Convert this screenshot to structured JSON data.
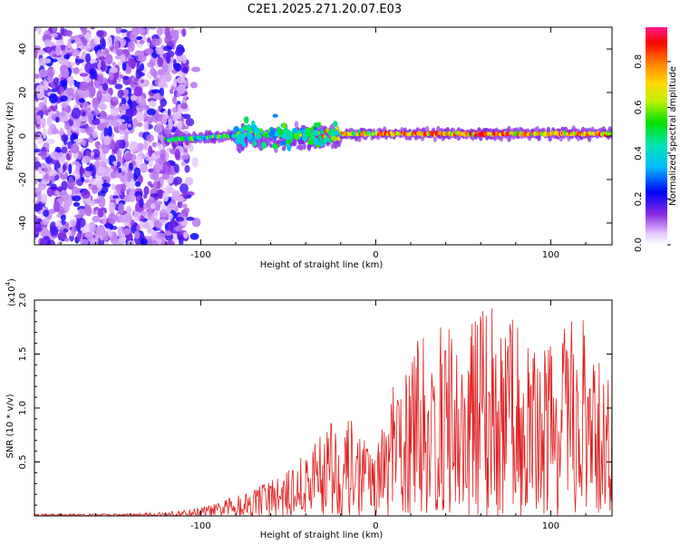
{
  "figure_title": "C2E1.2025.271.20.07.E03",
  "chart_data": [
    {
      "type": "heatmap",
      "title": "C2E1.2025.271.20.07.E03",
      "xlabel": "Height of straight line (km)",
      "ylabel": "Frequency (Hz)",
      "xlim": [
        -195,
        135
      ],
      "ylim": [
        -50,
        50
      ],
      "xticks": [
        -100,
        0,
        100
      ],
      "yticks": [
        -40,
        -20,
        0,
        20,
        40
      ],
      "xtick_labels": [
        "-100",
        "0",
        "100"
      ],
      "ytick_labels": [
        "-40",
        "-20",
        "0",
        "20",
        "40"
      ],
      "colorbar": {
        "label": "Normalized spectral amplitude",
        "range": [
          0,
          0.95
        ],
        "ticks": [
          "0.0",
          "0.2",
          "0.4",
          "0.6",
          "0.8"
        ],
        "tick_values": [
          0.0,
          0.2,
          0.4,
          0.6,
          0.8
        ]
      },
      "description_points": {
        "noise_region_x": [
          -195,
          -108
        ],
        "signal_line_frequency_hz": 1,
        "signal_start_x": -120,
        "disturbed_region_x": [
          -80,
          -20
        ]
      }
    },
    {
      "type": "line",
      "xlabel": "Height of straight line (km)",
      "ylabel": "SNR (10 * v/v)",
      "multiplier_label": "(x10",
      "multiplier_exp": "4",
      "multiplier_close": ")",
      "xlim": [
        -195,
        135
      ],
      "ylim": [
        0,
        2.0
      ],
      "xticks": [
        -100,
        0,
        100
      ],
      "xtick_labels": [
        "-100",
        "0",
        "100"
      ],
      "yticks": [
        0.5,
        1.0,
        1.5,
        2.0
      ],
      "ytick_labels": [
        "0.5",
        "1.0",
        "1.5",
        "2.0"
      ],
      "color": "#e02020",
      "envelope": {
        "x": [
          -195,
          -140,
          -110,
          -90,
          -80,
          -70,
          -60,
          -50,
          -40,
          -35,
          -30,
          -25,
          -20,
          -15,
          -10,
          -5,
          0,
          5,
          10,
          20,
          27,
          30,
          40,
          50,
          55,
          60,
          65,
          70,
          80,
          90,
          100,
          110,
          120,
          125,
          130,
          135
        ],
        "y": [
          0.02,
          0.02,
          0.05,
          0.12,
          0.2,
          0.28,
          0.35,
          0.42,
          0.62,
          0.7,
          0.9,
          1.0,
          0.8,
          0.9,
          0.85,
          0.7,
          0.6,
          0.9,
          1.2,
          1.5,
          1.75,
          1.5,
          1.85,
          1.6,
          1.85,
          2.0,
          2.0,
          1.75,
          1.9,
          1.6,
          1.7,
          1.8,
          1.85,
          1.4,
          1.5,
          1.35
        ]
      }
    }
  ]
}
